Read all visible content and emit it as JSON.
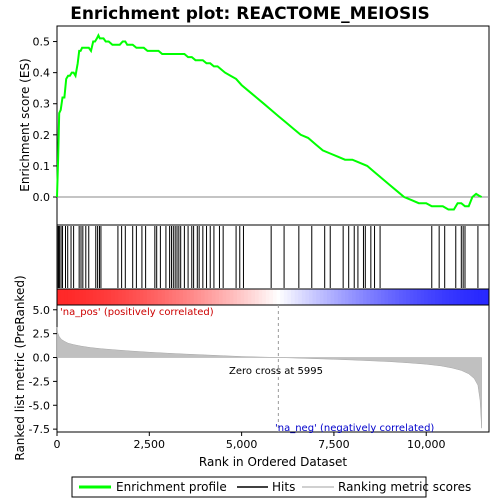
{
  "chart_data": {
    "type": "line",
    "title": "Enrichment plot: REACTOME_MEIOSIS",
    "top_panel": {
      "ylabel": "Enrichment score (ES)",
      "ylim": [
        -0.09,
        0.55
      ],
      "yticks": [
        "0.0",
        "0.1",
        "0.2",
        "0.3",
        "0.4",
        "0.5"
      ],
      "ytick_values": [
        0.0,
        0.1,
        0.2,
        0.3,
        0.4,
        0.5
      ],
      "series": [
        {
          "name": "Enrichment profile",
          "color": "#00ff00",
          "x": [
            0,
            30,
            60,
            100,
            150,
            200,
            250,
            300,
            350,
            400,
            450,
            500,
            560,
            600,
            640,
            680,
            720,
            760,
            800,
            860,
            920,
            980,
            1030,
            1080,
            1120,
            1160,
            1200,
            1260,
            1320,
            1400,
            1500,
            1600,
            1700,
            1780,
            1850,
            1900,
            1950,
            2050,
            2150,
            2250,
            2350,
            2450,
            2550,
            2650,
            2750,
            2850,
            2950,
            3050,
            3150,
            3250,
            3350,
            3450,
            3550,
            3650,
            3750,
            3850,
            3950,
            4050,
            4150,
            4250,
            4350,
            4450,
            4550,
            4700,
            4850,
            5000,
            5200,
            5400,
            5600,
            5800,
            6000,
            6200,
            6400,
            6600,
            6800,
            7000,
            7200,
            7400,
            7600,
            7800,
            8000,
            8200,
            8400,
            8600,
            8800,
            9000,
            9200,
            9400,
            9600,
            9800,
            10000,
            10150,
            10300,
            10450,
            10600,
            10750,
            10850,
            10950,
            11050,
            11150,
            11250,
            11350,
            11420,
            11500
          ],
          "y": [
            0.0,
            0.12,
            0.27,
            0.28,
            0.32,
            0.32,
            0.38,
            0.39,
            0.39,
            0.4,
            0.4,
            0.39,
            0.43,
            0.47,
            0.47,
            0.48,
            0.48,
            0.48,
            0.48,
            0.48,
            0.47,
            0.5,
            0.5,
            0.51,
            0.52,
            0.51,
            0.51,
            0.51,
            0.5,
            0.5,
            0.49,
            0.49,
            0.49,
            0.5,
            0.5,
            0.49,
            0.49,
            0.49,
            0.48,
            0.48,
            0.48,
            0.47,
            0.47,
            0.47,
            0.47,
            0.46,
            0.46,
            0.46,
            0.46,
            0.46,
            0.46,
            0.46,
            0.45,
            0.45,
            0.44,
            0.44,
            0.44,
            0.43,
            0.43,
            0.42,
            0.42,
            0.41,
            0.4,
            0.39,
            0.38,
            0.36,
            0.34,
            0.32,
            0.3,
            0.28,
            0.26,
            0.24,
            0.22,
            0.2,
            0.19,
            0.17,
            0.15,
            0.14,
            0.13,
            0.12,
            0.12,
            0.11,
            0.1,
            0.08,
            0.06,
            0.04,
            0.02,
            0.0,
            -0.01,
            -0.02,
            -0.02,
            -0.03,
            -0.03,
            -0.03,
            -0.04,
            -0.04,
            -0.02,
            -0.02,
            -0.03,
            -0.03,
            0.0,
            0.01,
            0.005,
            0.0
          ]
        }
      ]
    },
    "hits": {
      "name": "Hits",
      "color": "#000000",
      "positions": [
        10,
        40,
        70,
        110,
        150,
        230,
        290,
        380,
        450,
        600,
        650,
        700,
        780,
        860,
        1050,
        1100,
        1150,
        1190,
        1650,
        1750,
        1850,
        2050,
        2150,
        2300,
        2400,
        2650,
        2700,
        2800,
        2950,
        3050,
        3100,
        3150,
        3200,
        3250,
        3300,
        3350,
        3450,
        3550,
        3650,
        3700,
        3800,
        3850,
        3950,
        4050,
        4150,
        4250,
        4400,
        4500,
        4850,
        4950,
        5050,
        5800,
        6150,
        6550,
        6900,
        7250,
        7400,
        7750,
        7900,
        8050,
        8150,
        8300,
        8350,
        8500,
        8600,
        8750,
        10150,
        10350,
        10500,
        10800,
        10950,
        11000,
        11050,
        11400
      ]
    },
    "bottom_panel": {
      "ylabel": "Ranked list metric (PreRanked)",
      "xlabel": "Rank in Ordered Dataset",
      "ylim": [
        -7.8,
        5.5
      ],
      "yticks": [
        "-7.5",
        "-5.0",
        "-2.5",
        "0.0",
        "2.5",
        "5.0"
      ],
      "ytick_values": [
        -7.5,
        -5.0,
        -2.5,
        0.0,
        2.5,
        5.0
      ],
      "series": [
        {
          "name": "Ranking metric scores",
          "color": "#c0c0c0",
          "x": [
            0,
            20,
            60,
            120,
            200,
            300,
            450,
            650,
            900,
            1200,
            1600,
            2000,
            2500,
            3000,
            3500,
            4000,
            4500,
            5000,
            5500,
            5995,
            6500,
            7000,
            7500,
            8000,
            8500,
            9000,
            9500,
            10000,
            10400,
            10700,
            10950,
            11150,
            11300,
            11400,
            11460,
            11500
          ],
          "y": [
            3.2,
            2.6,
            2.2,
            1.9,
            1.7,
            1.5,
            1.35,
            1.2,
            1.05,
            0.92,
            0.8,
            0.68,
            0.56,
            0.45,
            0.36,
            0.27,
            0.19,
            0.11,
            0.05,
            0.0,
            -0.06,
            -0.12,
            -0.19,
            -0.26,
            -0.34,
            -0.43,
            -0.55,
            -0.7,
            -0.88,
            -1.1,
            -1.35,
            -1.7,
            -2.2,
            -2.9,
            -4.5,
            -7.4
          ]
        }
      ],
      "zero_cross_label": "Zero cross at 5995",
      "zero_cross_rank": 5995,
      "pos_label": "'na_pos' (positively correlated)",
      "pos_color": "#cc0000",
      "neg_label": "'na_neg' (negatively correlated)",
      "neg_color": "#0000cc"
    },
    "x_axis": {
      "xlim": [
        0,
        11700
      ],
      "xticks": [
        "0",
        "2,500",
        "5,000",
        "7,500",
        "10,000"
      ],
      "xtick_values": [
        0,
        2500,
        5000,
        7500,
        10000
      ]
    },
    "legend": {
      "placement": "bottom",
      "entries": [
        "Enrichment profile",
        "Hits",
        "Ranking metric scores"
      ]
    }
  },
  "colors": {
    "es_line": "#00ff00",
    "pos_band": "#ff0000",
    "neg_band": "#0000ff",
    "metric_fill": "#c0c0c0"
  }
}
